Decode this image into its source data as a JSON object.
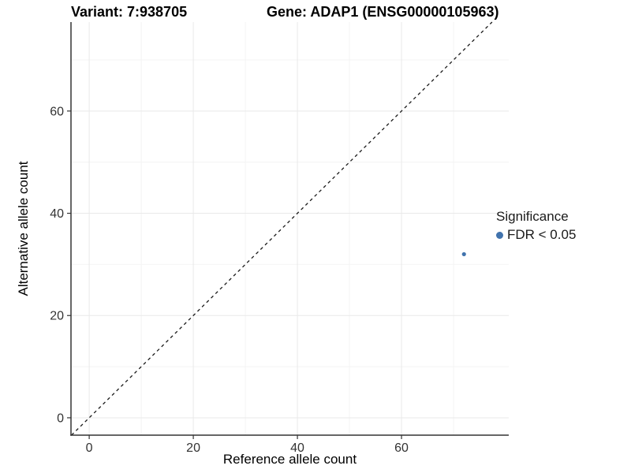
{
  "chart_data": {
    "type": "scatter",
    "titles": {
      "left": "Variant: 7:938705",
      "right": "Gene: ADAP1 (ENSG00000105963)"
    },
    "xlabel": "Reference allele count",
    "ylabel": "Alternative allele count",
    "xlim": [
      -3.5,
      80.6
    ],
    "ylim": [
      -3.4,
      77.4
    ],
    "x_ticks": [
      0,
      20,
      40,
      60
    ],
    "y_ticks": [
      0,
      20,
      40,
      60
    ],
    "x_minor_gridlines": [
      10,
      30,
      50,
      70
    ],
    "y_minor_gridlines": [
      10,
      30,
      50,
      70
    ],
    "grid": true,
    "legend_position": "right",
    "identity_line": {
      "slope": 1,
      "intercept": 0,
      "linetype": "dashed",
      "color": "#1a1a1a"
    },
    "series": [
      {
        "name": "FDR < 0.05",
        "color": "#4173ad",
        "point_radius": 2.6,
        "points": [
          {
            "x": 72,
            "y": 32
          }
        ]
      }
    ],
    "legend": {
      "title": "Significance",
      "items": [
        {
          "label": "FDR < 0.05",
          "color": "#4173ad"
        }
      ]
    },
    "colors": {
      "point_blue": "#4173ad",
      "axis_line": "#333333",
      "tick_label": "#333333",
      "grid_major": "#e9e9e9",
      "grid_minor": "#f4f4f4",
      "background": "#ffffff"
    }
  }
}
